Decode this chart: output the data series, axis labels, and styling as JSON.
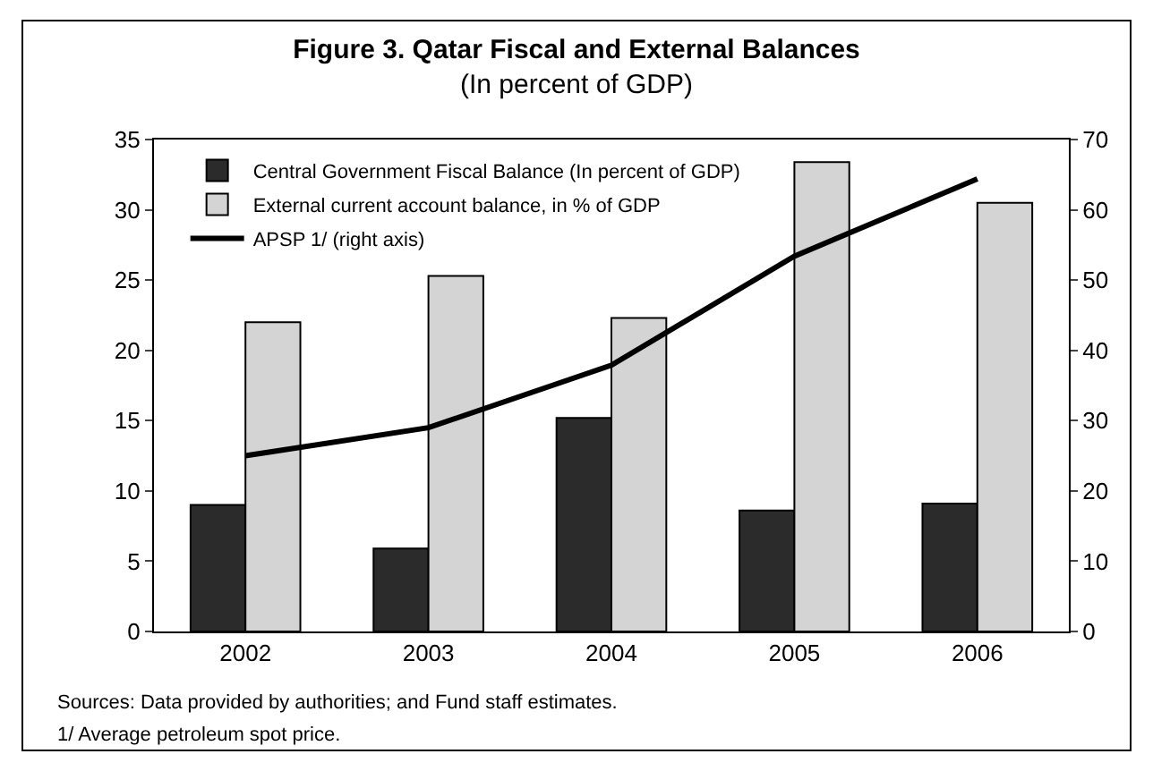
{
  "chart_data": {
    "type": "bar",
    "title": "Figure 3. Qatar Fiscal and External Balances",
    "subtitle": "(In percent of GDP)",
    "categories": [
      "2002",
      "2003",
      "2004",
      "2005",
      "2006"
    ],
    "series": [
      {
        "name": "Central Government Fiscal Balance (In percent of GDP)",
        "color": "#2b2b2b",
        "values": [
          9.0,
          5.9,
          15.2,
          8.6,
          9.1
        ]
      },
      {
        "name": "External current account balance, in % of GDP",
        "color": "#d4d4d4",
        "values": [
          22.0,
          25.3,
          22.3,
          33.4,
          30.5
        ]
      },
      {
        "name": "APSP 1/ (right axis)",
        "type": "line",
        "axis": "y2",
        "color": "#000000",
        "values": [
          25.0,
          29.0,
          37.9,
          53.4,
          64.4
        ]
      }
    ],
    "ylim": [
      0,
      35
    ],
    "yticks": [
      0,
      5,
      10,
      15,
      20,
      25,
      30,
      35
    ],
    "y2lim": [
      0,
      70
    ],
    "y2ticks": [
      0,
      10,
      20,
      30,
      40,
      50,
      60,
      70
    ],
    "grid": false,
    "legend": "top left",
    "marker": "none",
    "line_style": "solid",
    "annotations": [
      "Sources: Data provided by authorities; and Fund staff estimates.",
      "1/ Average petroleum spot price."
    ]
  }
}
